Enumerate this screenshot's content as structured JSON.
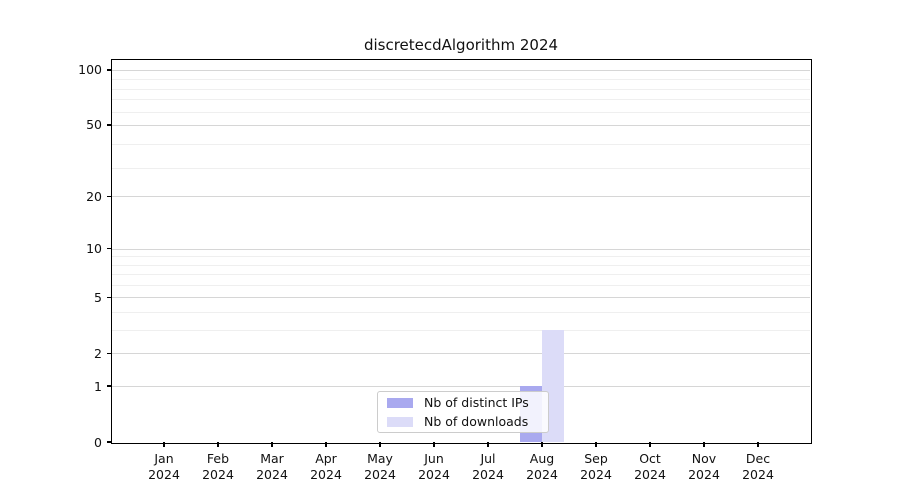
{
  "chart_data": {
    "type": "bar",
    "title": "discretecdAlgorithm 2024",
    "x_categories": [
      "Jan",
      "Feb",
      "Mar",
      "Apr",
      "May",
      "Jun",
      "Jul",
      "Aug",
      "Sep",
      "Oct",
      "Nov",
      "Dec"
    ],
    "x_year": "2024",
    "series": [
      {
        "name": "Nb of distinct IPs",
        "color": "#a9a9ef",
        "values": [
          0,
          0,
          0,
          0,
          0,
          0,
          0,
          1,
          0,
          0,
          0,
          0
        ]
      },
      {
        "name": "Nb of downloads",
        "color": "#dcdcf8",
        "values": [
          0,
          0,
          0,
          0,
          0,
          0,
          0,
          3,
          0,
          0,
          0,
          0
        ]
      }
    ],
    "yscale": "log1p",
    "ylim": [
      0,
      113
    ],
    "y_major_ticks": [
      0,
      1,
      2,
      5,
      10,
      20,
      50,
      100
    ],
    "y_minor_ticks": [
      3,
      4,
      6,
      7,
      8,
      9,
      29,
      39,
      59,
      69,
      79,
      89
    ],
    "grid": "horizontal-only",
    "legend_position": "lower center"
  },
  "colors": {
    "major_grid": "#d6d6d6",
    "minor_grid": "#efefef",
    "axis": "#000000",
    "text": "#111111",
    "background": "#ffffff",
    "legend_border": "#cccccc"
  }
}
